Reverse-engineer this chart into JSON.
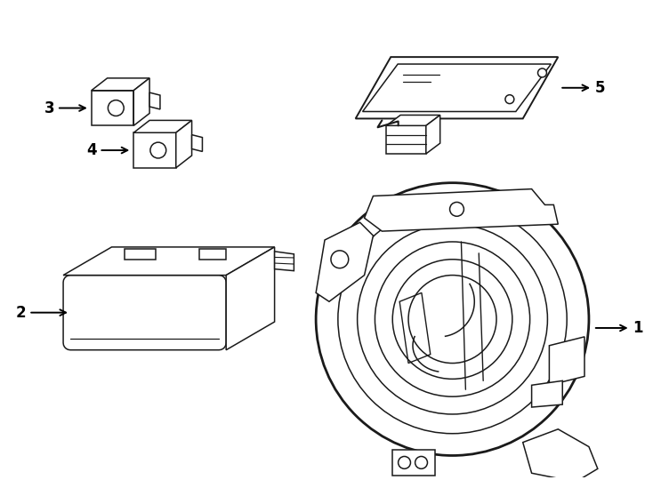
{
  "bg_color": "#ffffff",
  "line_color": "#1a1a1a",
  "figsize": [
    7.34,
    5.4
  ],
  "dpi": 100,
  "lw": 1.1
}
